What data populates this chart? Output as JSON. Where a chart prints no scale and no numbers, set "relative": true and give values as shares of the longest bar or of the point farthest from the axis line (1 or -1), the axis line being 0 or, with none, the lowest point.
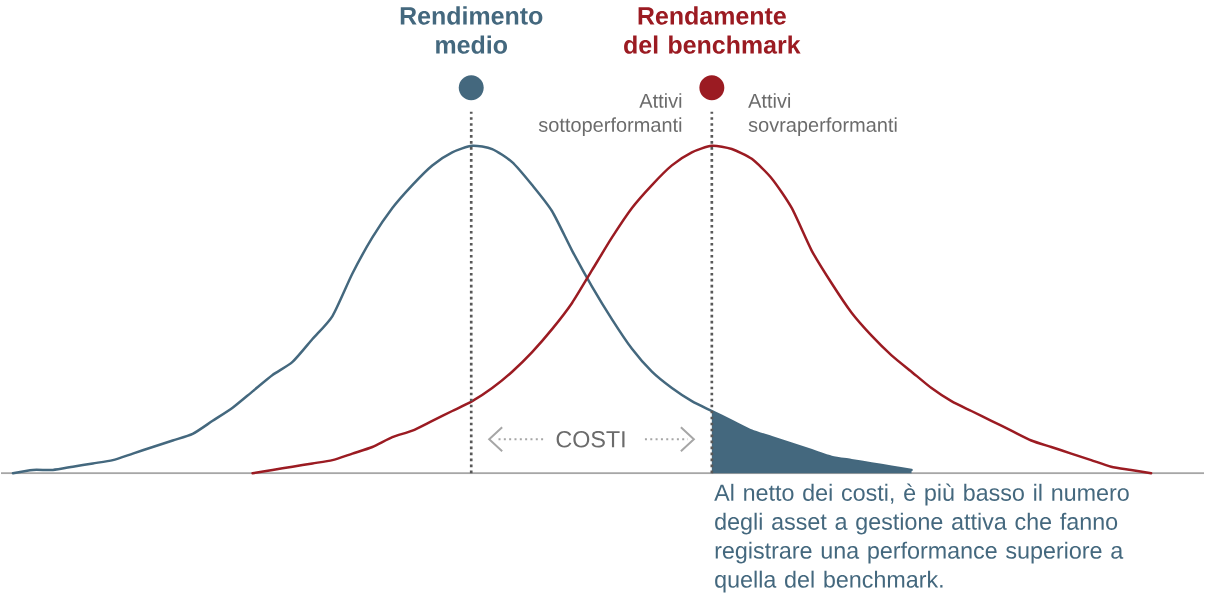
{
  "chart_data": {
    "type": "line",
    "relative": true,
    "categories": [
      null,
      null,
      null,
      null,
      null,
      null,
      null,
      null,
      null,
      null,
      null,
      null,
      null,
      null,
      null,
      null,
      null,
      null,
      null,
      null,
      null,
      null,
      null,
      null,
      null,
      null,
      null,
      null,
      null,
      null,
      null,
      null,
      null,
      null,
      null,
      null,
      null,
      null,
      null,
      null,
      null,
      null,
      null,
      null,
      null,
      null,
      null,
      null,
      null,
      null,
      null,
      null,
      null,
      null,
      null,
      null,
      null,
      null
    ],
    "series": [
      {
        "type": "line",
        "color": "#44687e",
        "values": [
          0.0,
          0.01,
          0.01,
          0.02,
          0.03,
          0.04,
          0.06,
          0.08,
          0.1,
          0.12,
          0.16,
          0.2,
          0.25,
          0.3,
          0.34,
          0.41,
          0.48,
          0.61,
          0.72,
          0.81,
          0.88,
          0.94,
          0.98,
          1.0,
          0.99,
          0.95,
          0.88,
          0.8,
          0.68,
          0.57,
          0.47,
          0.38,
          0.31,
          0.26,
          0.22,
          0.19,
          0.16,
          0.13,
          0.11,
          0.09,
          0.07,
          0.05,
          0.04,
          0.03,
          0.02,
          0.01,
          null,
          null,
          null,
          null,
          null,
          null,
          null,
          null,
          null,
          null,
          null,
          null
        ]
      },
      {
        "type": "line",
        "color": "#9b1b22",
        "values": [
          null,
          null,
          null,
          null,
          null,
          null,
          null,
          null,
          null,
          null,
          null,
          null,
          0.0,
          0.01,
          0.02,
          0.03,
          0.04,
          0.06,
          0.08,
          0.11,
          0.13,
          0.16,
          0.19,
          0.22,
          0.26,
          0.31,
          0.37,
          0.44,
          0.52,
          0.62,
          0.72,
          0.81,
          0.88,
          0.94,
          0.98,
          1.0,
          0.99,
          0.96,
          0.9,
          0.81,
          0.68,
          0.58,
          0.49,
          0.42,
          0.36,
          0.31,
          0.26,
          0.22,
          0.19,
          0.16,
          0.13,
          0.1,
          0.08,
          0.06,
          0.04,
          0.02,
          0.01,
          0.0
        ]
      },
      {
        "type": "area",
        "color": "#44687e",
        "values": [
          null,
          null,
          null,
          null,
          null,
          null,
          null,
          null,
          null,
          null,
          null,
          null,
          null,
          null,
          null,
          null,
          null,
          null,
          null,
          null,
          null,
          null,
          null,
          null,
          null,
          null,
          null,
          null,
          null,
          null,
          null,
          null,
          null,
          null,
          null,
          0.19,
          0.16,
          0.13,
          0.11,
          0.09,
          0.07,
          0.05,
          0.04,
          0.03,
          0.02,
          0.01,
          null,
          null,
          null,
          null,
          null,
          null,
          null,
          null,
          null,
          null,
          null,
          null
        ]
      }
    ],
    "annotations": [
      "Rendimento medio",
      "Rendamente del benchmark",
      "Attivi sottoperformanti",
      "Attivi sovraperformanti",
      "COSTI",
      "Al netto dei costi, è più basso il numero degli asset a gestione attiva che fanno registrare una performance superiore a quella del benchmark."
    ]
  }
}
